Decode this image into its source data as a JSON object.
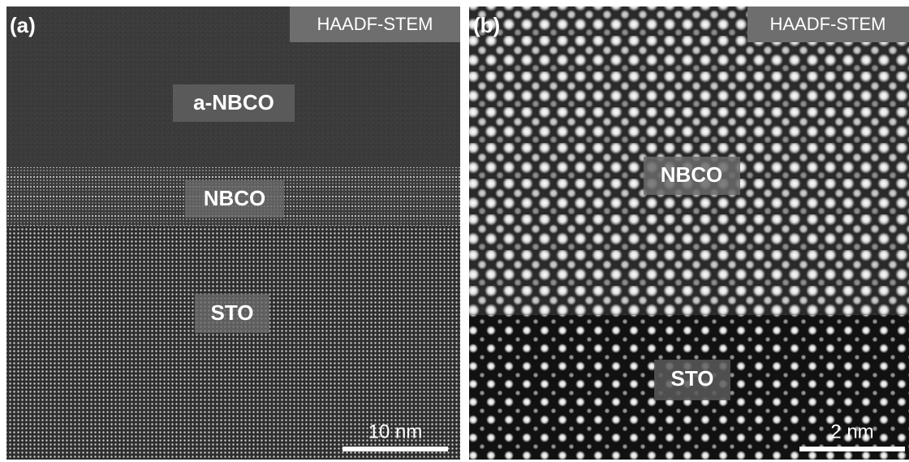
{
  "panels": [
    {
      "label": "(a)",
      "badge": "HAADF-STEM",
      "regions": [
        "a-NBCO",
        "NBCO",
        "STO"
      ],
      "scale": "10 nm"
    },
    {
      "label": "(b)",
      "badge": "HAADF-STEM",
      "regions": [
        "NBCO",
        "STO"
      ],
      "scale": "2 nm"
    }
  ]
}
